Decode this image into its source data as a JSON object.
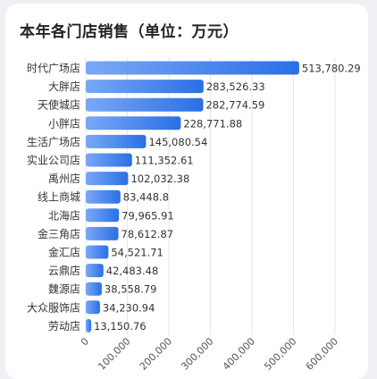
{
  "title": "本年各门店销售（单位：万元）",
  "colors": {
    "bar_start": "#7aa8f5",
    "bar_end": "#2a6fe6",
    "label": "#333333",
    "tick": "#555555",
    "grid": "#e6e6e6",
    "background": "#ffffff"
  },
  "chart_data": {
    "type": "bar",
    "orientation": "horizontal",
    "title": "本年各门店销售（单位：万元）",
    "xlabel": "",
    "ylabel": "",
    "xlim": [
      0,
      600000
    ],
    "x_ticks": [
      0,
      100000,
      200000,
      300000,
      400000,
      500000,
      600000
    ],
    "x_tick_labels": [
      "0",
      "100,000",
      "200,000",
      "300,000",
      "400,000",
      "500,000",
      "600,000"
    ],
    "grid": true,
    "categories": [
      "时代广场店",
      "大胖店",
      "天使城店",
      "小胖店",
      "生活广场店",
      "实业公司店",
      "禹州店",
      "线上商城",
      "北海店",
      "金三角店",
      "金汇店",
      "云鼎店",
      "魏源店",
      "大众服饰店",
      "劳动店"
    ],
    "values": [
      513780.29,
      283526.33,
      282774.59,
      228771.88,
      145080.54,
      111352.61,
      102032.38,
      83448.8,
      79965.91,
      78612.87,
      54521.71,
      42483.48,
      38558.79,
      34230.94,
      13150.76
    ],
    "value_labels": [
      "513,780.29",
      "283,526.33",
      "282,774.59",
      "228,771.88",
      "145,080.54",
      "111,352.61",
      "102,032.38",
      "83,448.8",
      "79,965.91",
      "78,612.87",
      "54,521.71",
      "42,483.48",
      "38,558.79",
      "34,230.94",
      "13,150.76"
    ]
  }
}
